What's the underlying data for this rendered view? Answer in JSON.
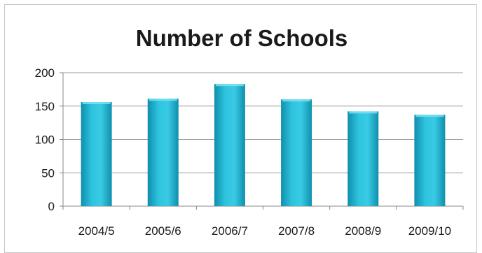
{
  "chart_data": {
    "type": "bar",
    "title": "Number of Schools",
    "categories": [
      "2004/5",
      "2005/6",
      "2006/7",
      "2007/8",
      "2008/9",
      "2009/10"
    ],
    "values": [
      156,
      161,
      183,
      160,
      142,
      137
    ],
    "ylim": [
      0,
      200
    ],
    "yticks": [
      0,
      50,
      100,
      150,
      200
    ],
    "grid": true,
    "legend": "none",
    "bar_color": "#1eaac6"
  }
}
